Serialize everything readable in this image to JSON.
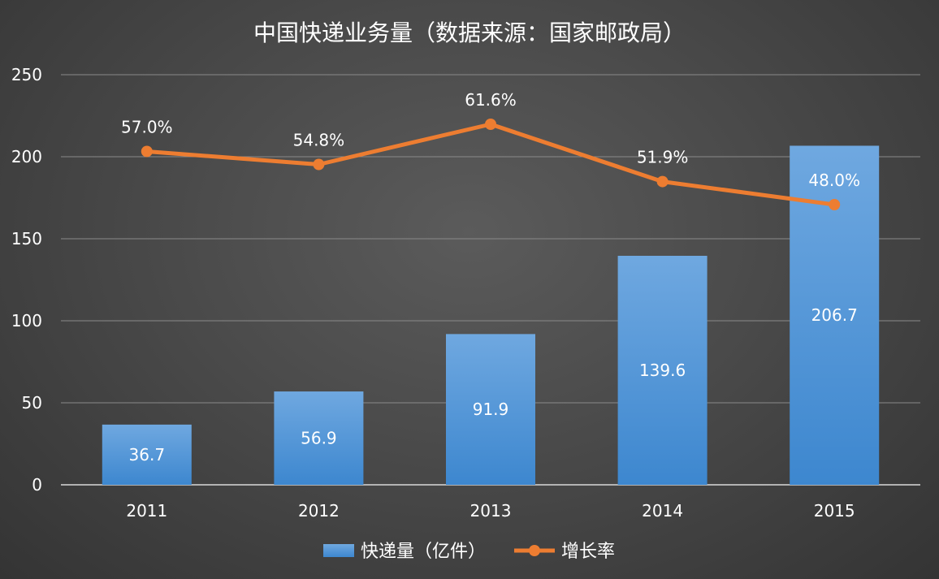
{
  "chart_data": {
    "type": "bar+line",
    "title": "中国快递业务量（数据来源：国家邮政局）",
    "categories": [
      "2011",
      "2012",
      "2013",
      "2014",
      "2015"
    ],
    "series": [
      {
        "name": "快递量（亿件）",
        "type": "bar",
        "axis": "left",
        "values": [
          36.7,
          56.9,
          91.9,
          139.6,
          206.7
        ],
        "value_labels": [
          "36.7",
          "56.9",
          "91.9",
          "139.6",
          "206.7"
        ],
        "color": "#5b9bd5"
      },
      {
        "name": "增长率",
        "type": "line",
        "axis": "secondary-hidden",
        "values": [
          57.0,
          54.8,
          61.6,
          51.9,
          48.0
        ],
        "value_labels": [
          "57.0%",
          "54.8%",
          "61.6%",
          "51.9%",
          "48.0%"
        ],
        "color": "#ed7d31"
      }
    ],
    "y_axis": {
      "ticks": [
        "0",
        "50",
        "100",
        "150",
        "200",
        "250"
      ],
      "ylim": [
        0,
        250
      ]
    },
    "grid": true,
    "legend": "bottom"
  }
}
